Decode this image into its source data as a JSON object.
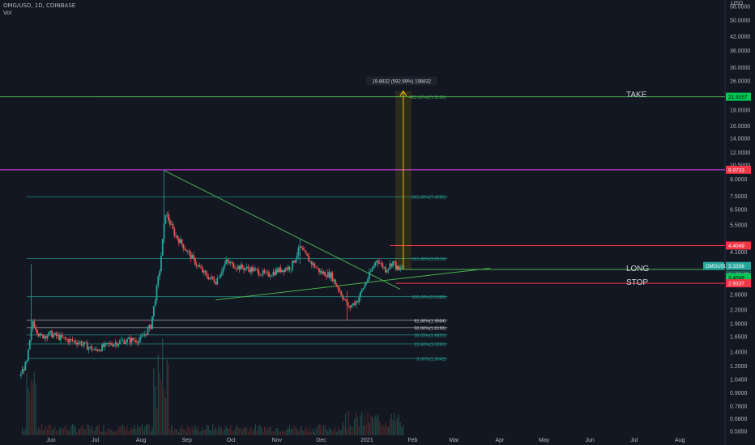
{
  "header": {
    "symbol": "OMG/USD, 1D, COINBASE",
    "vol_label": "Vol"
  },
  "axis": {
    "currency": "USD"
  },
  "colors": {
    "background": "#131722",
    "up": "#26a69a",
    "down": "#ef5350",
    "trend": "#4caf50",
    "take": "#4caf50",
    "stop": "#f23645",
    "magenta": "#e040fb",
    "fib": "#26a69a",
    "fib_white": "#d1d4dc",
    "arrow": "#f0c000",
    "axis_text": "#b2b5be"
  },
  "annotations": {
    "take": "TAKE",
    "long": "LONG",
    "stop": "STOP",
    "measure": "19.8832 (592.69%) 198832"
  },
  "badges": {
    "take": "21.9157",
    "magenta": "9.9733",
    "sell": "4.4049",
    "symbol": "OMGUSD",
    "price": "3.3356",
    "countdown": "21:55:55",
    "entry": "3.4049",
    "stop": "2.9337"
  },
  "chart_data": {
    "type": "candlestick",
    "title": "OMG/USD, 1D, COINBASE",
    "y_scale": "log",
    "y_ticks": [
      "58.0000",
      "50.0000",
      "42.0000",
      "36.0000",
      "30.0000",
      "26.0000",
      "22.0000",
      "19.0000",
      "16.0000",
      "14.0000",
      "12.0000",
      "10.5000",
      "9.0000",
      "7.5000",
      "6.5000",
      "5.5000",
      "4.1000",
      "3.5356",
      "3.0000",
      "2.6000",
      "2.2000",
      "1.9000",
      "1.6500",
      "1.4000",
      "1.2000",
      "1.0400",
      "0.9000",
      "0.7800",
      "0.6800",
      "0.5950"
    ],
    "x_ticks": [
      "Jun",
      "Jul",
      "Aug",
      "Sep",
      "Oct",
      "Nov",
      "Dec",
      "2021",
      "Feb",
      "Mar",
      "Apr",
      "May",
      "Jun",
      "Jul",
      "Aug"
    ],
    "x_range": [
      "2020-05-15",
      "2021-08-25"
    ],
    "fib_levels": [
      {
        "label": "423.60%(21.9169)",
        "value": 21.9169,
        "color": "green",
        "x_start": "2020-07-05"
      },
      {
        "label": "261.80%(7.4595)",
        "value": 7.4595,
        "color": "teal",
        "x_start": "2020-05-20"
      },
      {
        "label": "161.80%(3.8319)",
        "value": 3.8319,
        "color": "teal",
        "x_start": "2020-05-20"
      },
      {
        "label": "100.00%(2.5388)",
        "value": 2.5388,
        "color": "teal",
        "x_start": "2020-05-20"
      },
      {
        "label": "61.80%(1.9684)",
        "value": 1.9684,
        "color": "white",
        "x_start": "2020-05-20"
      },
      {
        "label": "50.00%(1.8196)",
        "value": 1.8196,
        "color": "white",
        "x_start": "2020-05-20"
      },
      {
        "label": "38.20%(1.6821)",
        "value": 1.6821,
        "color": "teal",
        "x_start": "2020-05-20"
      },
      {
        "label": "23.60%(1.5262)",
        "value": 1.5262,
        "color": "teal",
        "x_start": "2020-05-20"
      },
      {
        "label": "0.00%(1.3042)",
        "value": 1.3042,
        "color": "teal",
        "x_start": "2020-05-20"
      }
    ],
    "horizontal_lines": [
      {
        "name": "TAKE",
        "value": 21.9157,
        "color": "green"
      },
      {
        "name": "magenta",
        "value": 9.9733,
        "color": "magenta"
      },
      {
        "name": "sell",
        "value": 4.4049,
        "color": "red",
        "x_start": "2021-01-21"
      },
      {
        "name": "LONG",
        "value": 3.4049,
        "color": "green",
        "x_start": "2021-01-25"
      },
      {
        "name": "STOP",
        "value": 2.9337,
        "color": "red",
        "x_start": "2021-01-25"
      }
    ],
    "trendlines": [
      {
        "from": [
          "2020-08-21",
          9.9
        ],
        "to": [
          "2021-01-28",
          2.75
        ]
      },
      {
        "from": [
          "2020-09-25",
          2.45
        ],
        "to": [
          "2021-03-30",
          3.45
        ]
      }
    ],
    "measure": {
      "x": "2021-01-30",
      "from": 3.4049,
      "to": 23.3
    },
    "ohlc_keypoints": [
      [
        "2020-05-15",
        1.08
      ],
      [
        "2020-05-20",
        1.25
      ],
      [
        "2020-05-24",
        1.95
      ],
      [
        "2020-05-29",
        1.65
      ],
      [
        "2020-06-05",
        1.7
      ],
      [
        "2020-06-15",
        1.6
      ],
      [
        "2020-06-25",
        1.55
      ],
      [
        "2020-07-05",
        1.42
      ],
      [
        "2020-07-15",
        1.52
      ],
      [
        "2020-07-25",
        1.58
      ],
      [
        "2020-08-05",
        1.6
      ],
      [
        "2020-08-12",
        1.85
      ],
      [
        "2020-08-18",
        3.4
      ],
      [
        "2020-08-22",
        6.3
      ],
      [
        "2020-08-28",
        5.0
      ],
      [
        "2020-09-05",
        4.2
      ],
      [
        "2020-09-12",
        3.6
      ],
      [
        "2020-09-18",
        3.2
      ],
      [
        "2020-09-25",
        3.0
      ],
      [
        "2020-10-02",
        3.7
      ],
      [
        "2020-10-10",
        3.5
      ],
      [
        "2020-10-20",
        3.4
      ],
      [
        "2020-10-30",
        3.2
      ],
      [
        "2020-11-05",
        3.35
      ],
      [
        "2020-11-15",
        3.5
      ],
      [
        "2020-11-21",
        4.3
      ],
      [
        "2020-11-28",
        3.7
      ],
      [
        "2020-12-05",
        3.3
      ],
      [
        "2020-12-12",
        3.2
      ],
      [
        "2020-12-18",
        2.7
      ],
      [
        "2020-12-24",
        2.25
      ],
      [
        "2020-12-30",
        2.45
      ],
      [
        "2021-01-06",
        3.1
      ],
      [
        "2021-01-12",
        3.8
      ],
      [
        "2021-01-18",
        3.4
      ],
      [
        "2021-01-23",
        3.7
      ],
      [
        "2021-01-27",
        3.35
      ],
      [
        "2021-01-30",
        3.54
      ]
    ]
  }
}
